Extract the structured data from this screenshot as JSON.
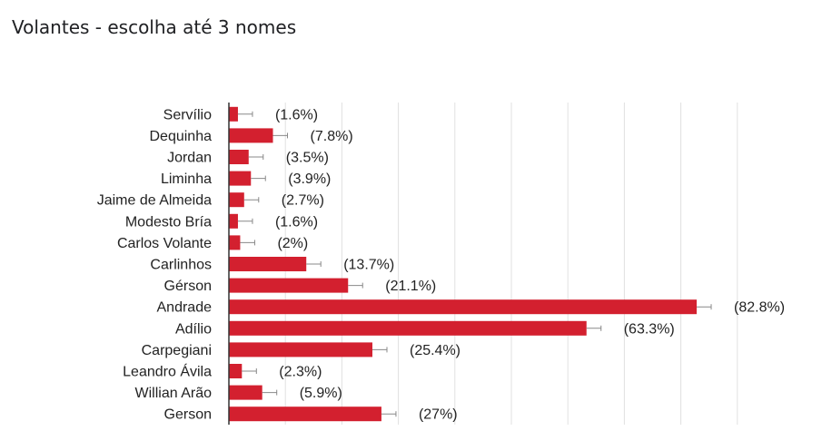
{
  "page": {
    "title": "Volantes - escolha até 3 nomes"
  },
  "colors": {
    "bar": "#d3202f",
    "grid": "#e0e0e0",
    "axis": "#333333",
    "errorbar": "#888888"
  },
  "chart_data": {
    "type": "bar",
    "orientation": "horizontal",
    "title": "Volantes - escolha até 3 nomes",
    "xlabel": "",
    "ylabel": "",
    "xlim": [
      0,
      100
    ],
    "grid": true,
    "categories": [
      "Servílio",
      "Dequinha",
      "Jordan",
      "Liminha",
      "Jaime de Almeida",
      "Modesto Bría",
      "Carlos Volante",
      "Carlinhos",
      "Gérson",
      "Andrade",
      "Adílio",
      "Carpegiani",
      "Leandro Ávila",
      "Willian Arão",
      "Gerson"
    ],
    "values": [
      1.6,
      7.8,
      3.5,
      3.9,
      2.7,
      1.6,
      2,
      13.7,
      21.1,
      82.8,
      63.3,
      25.4,
      2.3,
      5.9,
      27
    ],
    "value_labels": [
      "(1.6%)",
      "(7.8%)",
      "(3.5%)",
      "(3.9%)",
      "(2.7%)",
      "(1.6%)",
      "(2%)",
      "(13.7%)",
      "(21.1%)",
      "(82.8%)",
      "(63.3%)",
      "(25.4%)",
      "(2.3%)",
      "(5.9%)",
      "(27%)"
    ]
  }
}
